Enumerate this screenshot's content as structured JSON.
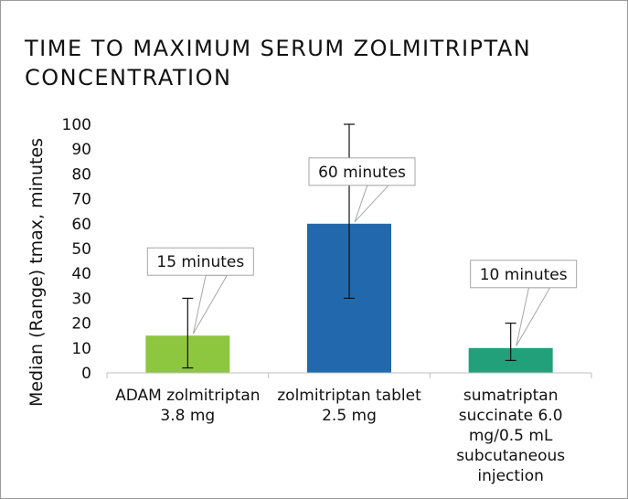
{
  "title_lines": [
    "TIME TO MAXIMUM SERUM ZOLMITRIPTAN",
    "CONCENTRATION"
  ],
  "chart_data": {
    "type": "bar",
    "ylabel": "Median (Range) tmax, minutes",
    "ylim": [
      0,
      100
    ],
    "yticks": [
      0,
      10,
      20,
      30,
      40,
      50,
      60,
      70,
      80,
      90,
      100
    ],
    "grid": false,
    "categories": [
      [
        "ADAM zolmitriptan",
        "3.8 mg"
      ],
      [
        "zolmitriptan tablet",
        "2.5 mg"
      ],
      [
        "sumatriptan",
        "succinate 6.0",
        "mg/0.5 mL",
        "subcutaneous",
        "injection"
      ]
    ],
    "values": [
      15,
      60,
      10
    ],
    "ranges": [
      [
        2,
        30
      ],
      [
        30,
        100
      ],
      [
        5,
        20
      ]
    ],
    "colors": [
      "#8dc63f",
      "#2169ac",
      "#21a07a"
    ],
    "annotations": [
      "15 minutes",
      "60 minutes",
      "10 minutes"
    ]
  }
}
